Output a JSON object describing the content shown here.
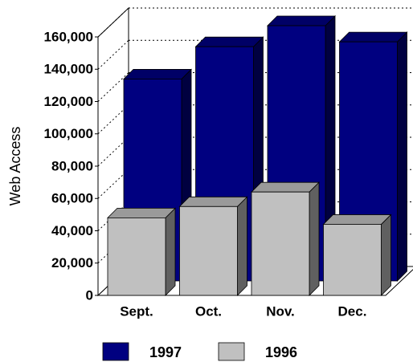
{
  "chart_data": {
    "type": "bar3d",
    "y_label": "Web Access",
    "categories": [
      "Sept.",
      "Oct.",
      "Nov.",
      "Dec."
    ],
    "series": [
      {
        "name": "1997",
        "color": "#000080",
        "values": [
          125000,
          145000,
          158000,
          148000
        ]
      },
      {
        "name": "1996",
        "color": "#c0c0c0",
        "values": [
          48000,
          55000,
          64000,
          44000
        ]
      }
    ],
    "ylim": [
      0,
      160000
    ],
    "yticks": [
      0,
      {
        "value": 20000,
        "label": "20,000"
      },
      {
        "value": 40000,
        "label": "40,000"
      },
      {
        "value": 60000,
        "label": "60,000"
      },
      {
        "value": 80000,
        "label": "80,000"
      },
      {
        "value": 100000,
        "label": "100,000"
      },
      {
        "value": 120000,
        "label": "120,000"
      },
      {
        "value": 140000,
        "label": "140,000"
      },
      {
        "value": 160000,
        "label": "160,000"
      }
    ],
    "grid": true,
    "legend": "bottom"
  }
}
